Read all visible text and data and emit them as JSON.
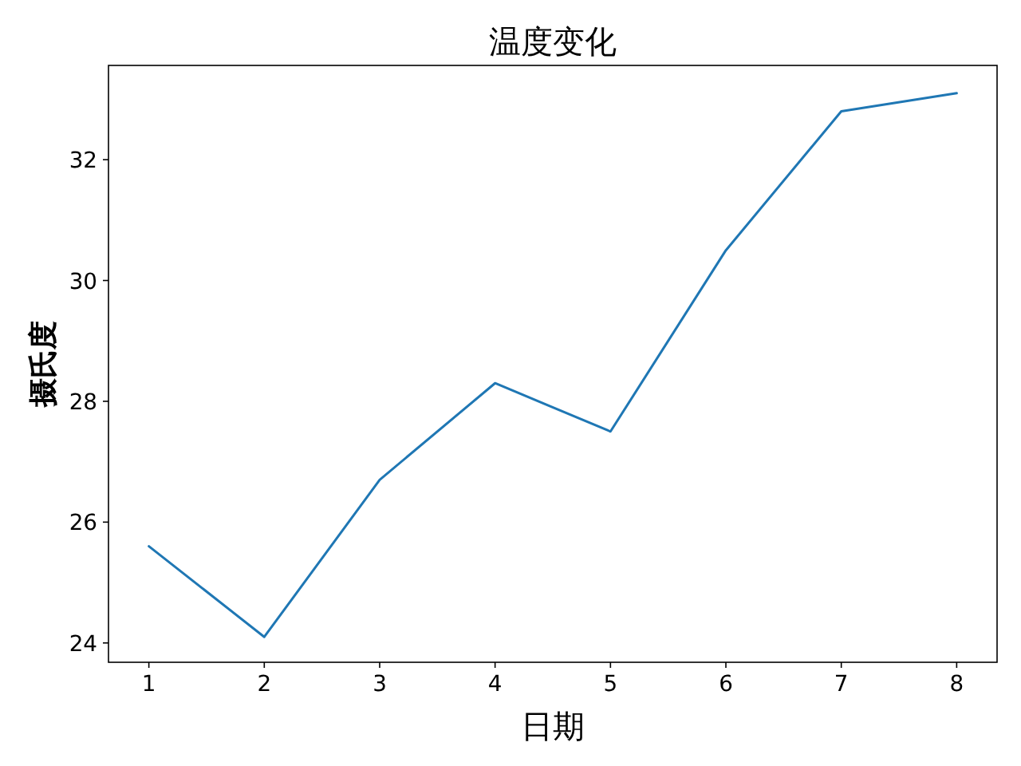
{
  "chart_data": {
    "type": "line",
    "title": "温度变化",
    "xlabel": "日期",
    "ylabel": "摄氏度",
    "x": [
      1,
      2,
      3,
      4,
      5,
      6,
      7,
      8
    ],
    "series": [
      {
        "color": "#1f77b4",
        "values": [
          25.6,
          24.1,
          26.7,
          28.3,
          27.5,
          30.5,
          32.8,
          33.1
        ]
      }
    ],
    "xlim": [
      0.65,
      8.35
    ],
    "ylim": [
      23.68,
      33.56
    ],
    "xticks": [
      1,
      2,
      3,
      4,
      5,
      6,
      7,
      8
    ],
    "yticks": [
      24,
      26,
      28,
      30,
      32
    ],
    "grid": false,
    "marker": "none",
    "line_style": "solid"
  }
}
